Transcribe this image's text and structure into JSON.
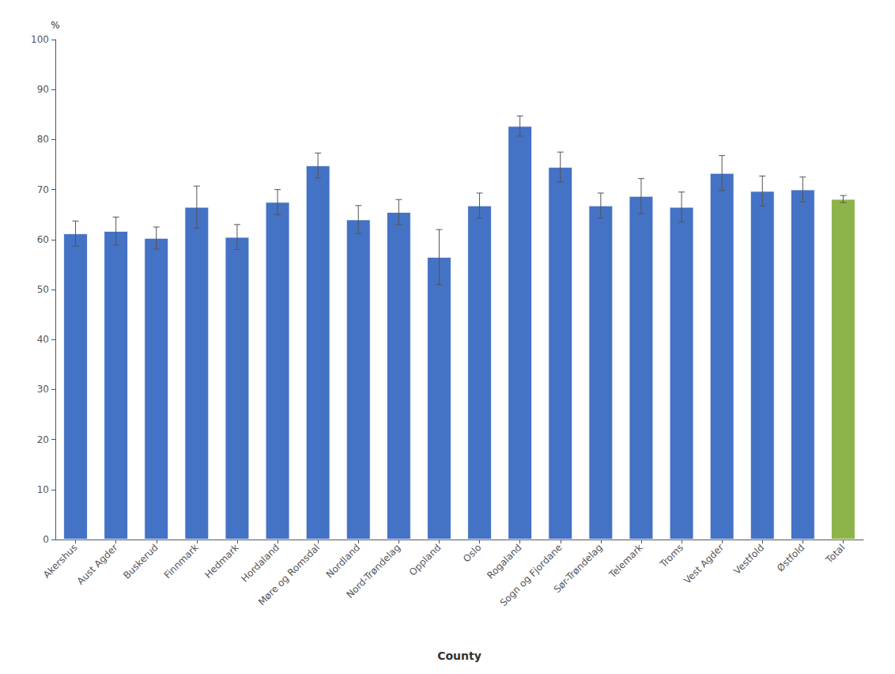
{
  "chart_data": {
    "type": "bar",
    "xlabel": "County",
    "ylabel": "%",
    "categories": [
      "Akershus",
      "Aust Agder",
      "Buskerud",
      "Finnmark",
      "Hedmark",
      "Hordaland",
      "Møre og Romsdal",
      "Nordland",
      "Nord-Trøndelag",
      "Oppland",
      "Oslo",
      "Rogaland",
      "Sogn og Fjordane",
      "Sør-Trøndelag",
      "Telemark",
      "Troms",
      "Vest Agder",
      "Vestfold",
      "Østfold",
      "Total"
    ],
    "values": [
      61.2,
      61.7,
      60.3,
      66.5,
      60.5,
      67.5,
      74.8,
      64.0,
      65.5,
      56.5,
      66.8,
      82.7,
      74.5,
      66.8,
      68.7,
      66.5,
      73.3,
      69.7,
      70.0,
      68.1
    ],
    "errors_low": [
      2.5,
      2.8,
      2.2,
      4.2,
      2.5,
      2.5,
      2.5,
      2.8,
      2.5,
      5.5,
      2.5,
      2.0,
      3.0,
      2.5,
      3.5,
      3.0,
      3.5,
      3.0,
      2.5,
      0.7
    ],
    "errors_high": [
      2.5,
      2.8,
      2.2,
      4.2,
      2.5,
      2.5,
      2.5,
      2.8,
      2.5,
      5.5,
      2.5,
      2.0,
      3.0,
      2.5,
      3.5,
      3.0,
      3.5,
      3.0,
      2.5,
      0.7
    ],
    "colors": [
      "#4472C4",
      "#4472C4",
      "#4472C4",
      "#4472C4",
      "#4472C4",
      "#4472C4",
      "#4472C4",
      "#4472C4",
      "#4472C4",
      "#4472C4",
      "#4472C4",
      "#4472C4",
      "#4472C4",
      "#4472C4",
      "#4472C4",
      "#4472C4",
      "#4472C4",
      "#4472C4",
      "#4472C4",
      "#8DB44A"
    ],
    "ylim": [
      0,
      100
    ],
    "yticks": [
      0,
      10,
      20,
      30,
      40,
      50,
      60,
      70,
      80,
      90,
      100
    ],
    "grid": false
  }
}
